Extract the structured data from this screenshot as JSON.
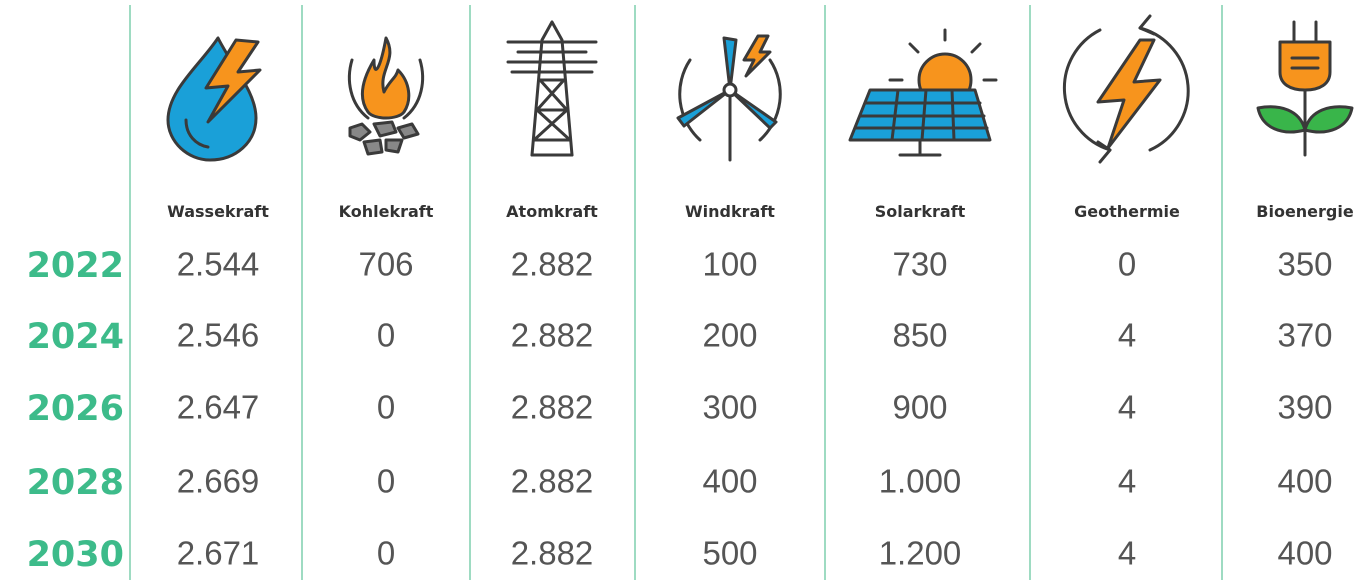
{
  "table": {
    "columns": [
      "Wassekraft",
      "Kohlekraft",
      "Atomkraft",
      "Windkraft",
      "Solarkraft",
      "Geothermie",
      "Bioenergie"
    ],
    "rows": [
      {
        "year": "2022",
        "values": [
          "2.544",
          "706",
          "2.882",
          "100",
          "730",
          "0",
          "350"
        ]
      },
      {
        "year": "2024",
        "values": [
          "2.546",
          "0",
          "2.882",
          "200",
          "850",
          "4",
          "370"
        ]
      },
      {
        "year": "2026",
        "values": [
          "2.647",
          "0",
          "2.882",
          "300",
          "900",
          "4",
          "390"
        ]
      },
      {
        "year": "2028",
        "values": [
          "2.669",
          "0",
          "2.882",
          "400",
          "1.000",
          "4",
          "400"
        ]
      },
      {
        "year": "2030",
        "values": [
          "2.671",
          "0",
          "2.882",
          "500",
          "1.200",
          "4",
          "400"
        ]
      }
    ]
  }
}
